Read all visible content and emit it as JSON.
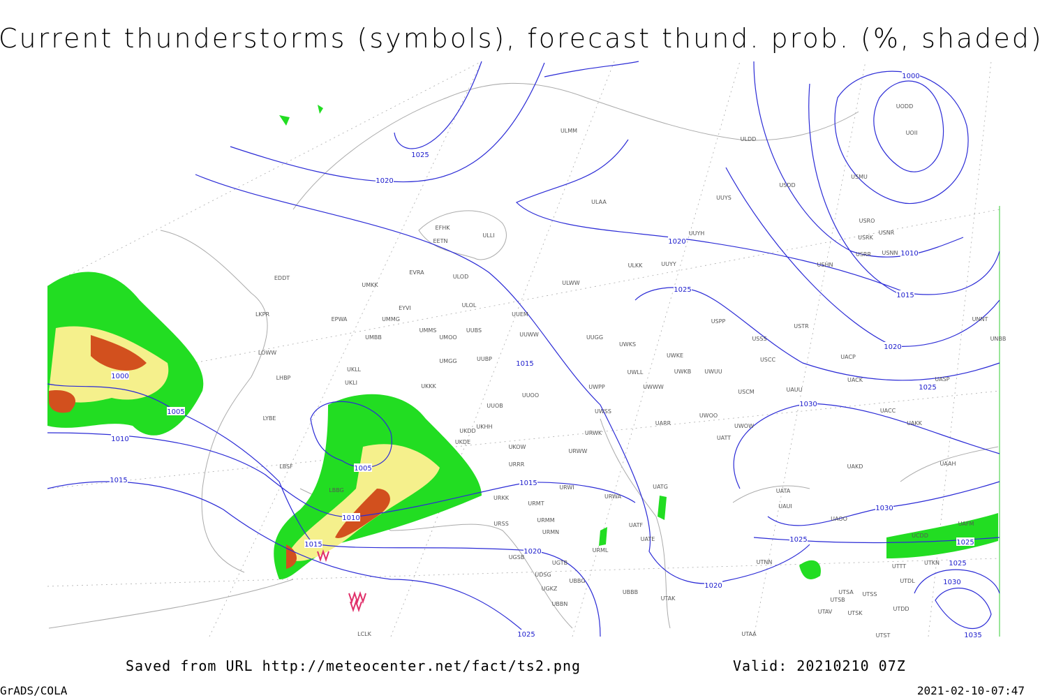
{
  "header": {
    "title": "Current thunderstorms (symbols), forecast thund. prob. (%, shaded)"
  },
  "footer": {
    "source": "Saved from URL http://meteocenter.net/fact/ts2.png",
    "valid": "Valid: 20210210 07Z",
    "software": "GrADS/COLA",
    "timestamp": "2021-02-10-07:47"
  },
  "map": {
    "isobar_labels": [
      "1025",
      "1020",
      "1000",
      "1010",
      "1015",
      "1020",
      "1025",
      "1020",
      "1025",
      "1030",
      "1015",
      "1005",
      "1010",
      "1015",
      "1000",
      "1005",
      "1010",
      "1015",
      "1015",
      "1020",
      "1025",
      "1020",
      "1025",
      "1030",
      "1025",
      "1025",
      "1030",
      "1035"
    ],
    "stations": [
      "ULMM",
      "ULDD",
      "UODD",
      "UOII",
      "USDD",
      "USMU",
      "ULAA",
      "UUYS",
      "USRO",
      "USNR",
      "USRK",
      "USRR",
      "USNN",
      "UUYH",
      "EFHK",
      "EETN",
      "ULLI",
      "EVRA",
      "ULOD",
      "ULKK",
      "UUYY",
      "USHN",
      "EDDT",
      "UMKK",
      "ULWW",
      "EYVI",
      "ULOL",
      "UUEM",
      "LKPR",
      "EPWA",
      "UMMG",
      "UMMS",
      "UMOO",
      "UUBS",
      "UUWW",
      "USPP",
      "USTR",
      "UNNT",
      "UNBB",
      "UMBB",
      "UUGG",
      "UWKS",
      "USSS",
      "LOWW",
      "UWKE",
      "USCC",
      "UACP",
      "UMGG",
      "UUBP",
      "UKLL",
      "UWLL",
      "UWKB",
      "UWUU",
      "UACK",
      "UASP",
      "LHBP",
      "UKLI",
      "UWPP",
      "UWWW",
      "USCM",
      "UAUU",
      "UKKK",
      "UUOO",
      "UUOB",
      "UACC",
      "LYBE",
      "UWSS",
      "UKHH",
      "UKDD",
      "UARR",
      "UWOO",
      "UWOW",
      "UAKK",
      "UKDE",
      "URWK",
      "UATT",
      "UKOW",
      "URWW",
      "LBSF",
      "URRR",
      "UAKD",
      "UAAH",
      "LBBG",
      "URKK",
      "URWI",
      "URWA",
      "UATG",
      "UATA",
      "URMT",
      "UAUI",
      "URMM",
      "UAOO",
      "URSS",
      "UATF",
      "URMN",
      "UATE",
      "UAFM",
      "UCDD",
      "URML",
      "UGSB",
      "UTNN",
      "UGTB",
      "UTTT",
      "UTKN",
      "UDSG",
      "UGKZ",
      "UBBG",
      "UTDL",
      "UBBB",
      "UTAK",
      "UTSA",
      "UTSS",
      "UTSB",
      "UBBN",
      "UTDD",
      "UTAV",
      "UTSK",
      "LCLK",
      "UTAA",
      "UTST"
    ]
  }
}
